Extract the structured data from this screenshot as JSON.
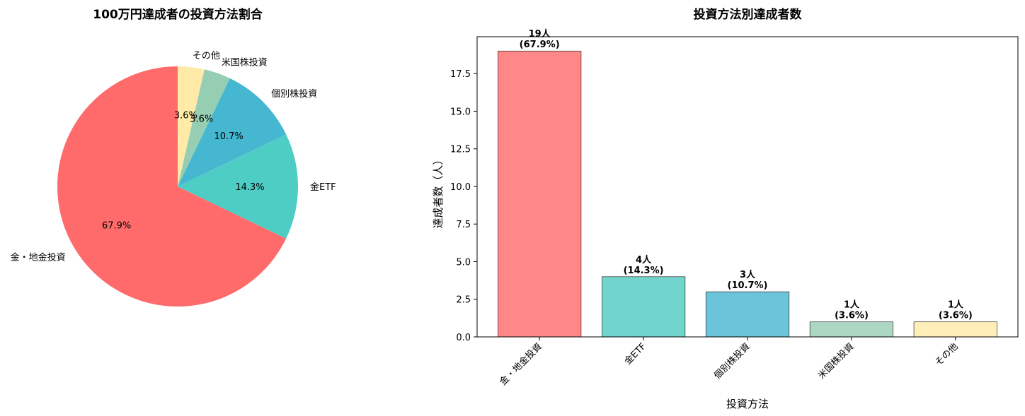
{
  "chart_data": [
    {
      "type": "pie",
      "title": "100万円達成者の投資方法割合",
      "labels": [
        "金・地金投資",
        "金ETF",
        "個別株投資",
        "米国株投資",
        "その他"
      ],
      "values": [
        19,
        4,
        3,
        1,
        1
      ],
      "percent_labels": [
        "67.9%",
        "14.3%",
        "10.7%",
        "3.6%",
        "3.6%"
      ],
      "colors": [
        "#FF6B6B",
        "#4ECDC4",
        "#45B7D1",
        "#96CEB4",
        "#FFEAA7"
      ],
      "start_angle_deg": 90,
      "direction": "counterclockwise"
    },
    {
      "type": "bar",
      "title": "投資方法別達成者数",
      "categories": [
        "金・地金投資",
        "金ETF",
        "個別株投資",
        "米国株投資",
        "その他"
      ],
      "values": [
        19,
        4,
        3,
        1,
        1
      ],
      "bar_labels": [
        [
          "19人",
          "(67.9%)"
        ],
        [
          "4人",
          "(14.3%)"
        ],
        [
          "3人",
          "(10.7%)"
        ],
        [
          "1人",
          "(3.6%)"
        ],
        [
          "1人",
          "(3.6%)"
        ]
      ],
      "colors": [
        "#FF8787",
        "#71D4CD",
        "#6AC5DA",
        "#ABD7C3",
        "#FFEEB8"
      ],
      "xlabel": "投資方法",
      "ylabel": "達成者数（人）",
      "ylim": [
        0,
        19.95
      ],
      "yticks": [
        0.0,
        2.5,
        5.0,
        7.5,
        10.0,
        12.5,
        15.0,
        17.5
      ],
      "ytick_labels": [
        "0.0",
        "2.5",
        "5.0",
        "7.5",
        "10.0",
        "12.5",
        "15.0",
        "17.5"
      ],
      "grid": false
    }
  ]
}
